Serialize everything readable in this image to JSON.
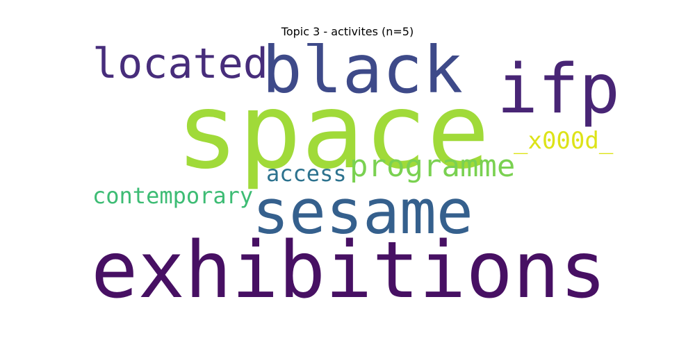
{
  "title": "Topic 3 - activites (n=5)",
  "words": [
    {
      "id": "w-space",
      "text": "space",
      "color": "#a0da39"
    },
    {
      "id": "w-exhibitions",
      "text": "exhibitions",
      "color": "#471063"
    },
    {
      "id": "w-black",
      "text": "black",
      "color": "#3e4a89"
    },
    {
      "id": "w-sesame",
      "text": "sesame",
      "color": "#35608d"
    },
    {
      "id": "w-ifp",
      "text": "ifp",
      "color": "#482575"
    },
    {
      "id": "w-located",
      "text": "located",
      "color": "#472d7b"
    },
    {
      "id": "w-programme",
      "text": "programme",
      "color": "#7ad151"
    },
    {
      "id": "w-x000d",
      "text": "_x000d_",
      "color": "#dde318"
    },
    {
      "id": "w-access",
      "text": "access",
      "color": "#2c728e"
    },
    {
      "id": "w-contemporary",
      "text": "contemporary",
      "color": "#3dbc74"
    }
  ]
}
